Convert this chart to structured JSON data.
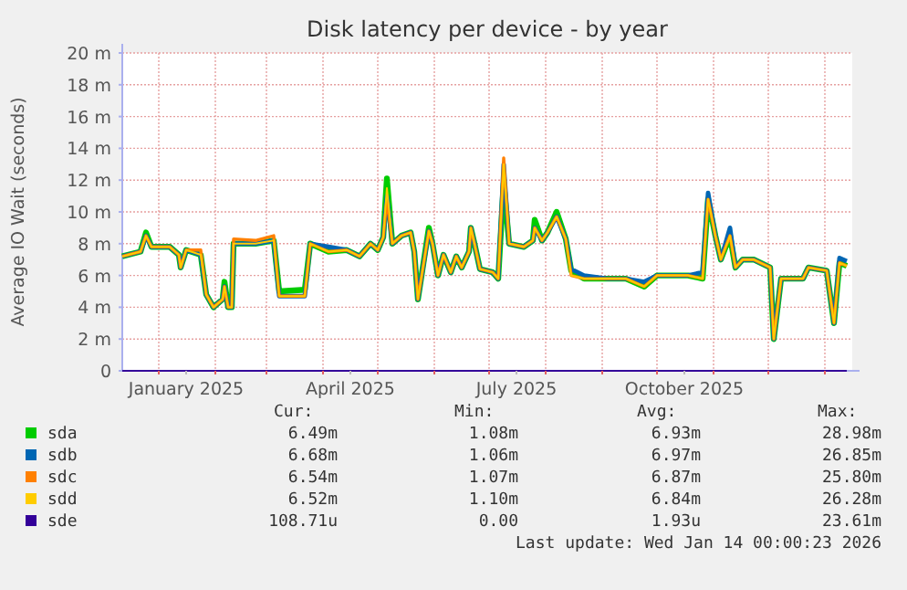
{
  "chart_data": {
    "type": "line",
    "title": "Disk latency per device - by year",
    "ylabel": "Average IO Wait (seconds)",
    "xlim": [
      "2024-12-12",
      "2026-01-16"
    ],
    "xticks": [
      {
        "value": "2025-01-01",
        "label": null
      },
      {
        "value": "2025-01-16",
        "label": "January 2025"
      },
      {
        "value": "2025-02-01",
        "label": null
      },
      {
        "value": "2025-03-01",
        "label": null
      },
      {
        "value": "2025-04-01",
        "label": null
      },
      {
        "value": "2025-04-16",
        "label": "April 2025"
      },
      {
        "value": "2025-05-01",
        "label": null
      },
      {
        "value": "2025-06-01",
        "label": null
      },
      {
        "value": "2025-07-01",
        "label": null
      },
      {
        "value": "2025-07-16",
        "label": "July 2025"
      },
      {
        "value": "2025-08-01",
        "label": null
      },
      {
        "value": "2025-09-01",
        "label": null
      },
      {
        "value": "2025-10-01",
        "label": null
      },
      {
        "value": "2025-10-16",
        "label": "October 2025"
      },
      {
        "value": "2025-11-01",
        "label": null
      },
      {
        "value": "2025-12-01",
        "label": null
      },
      {
        "value": "2026-01-01",
        "label": null
      }
    ],
    "ylim": [
      0,
      20
    ],
    "yticks": [
      {
        "value": 0,
        "label": "0"
      },
      {
        "value": 2,
        "label": "2 m"
      },
      {
        "value": 4,
        "label": "4 m"
      },
      {
        "value": 6,
        "label": "6 m"
      },
      {
        "value": 8,
        "label": "8 m"
      },
      {
        "value": 10,
        "label": "10 m"
      },
      {
        "value": 12,
        "label": "12 m"
      },
      {
        "value": 14,
        "label": "14 m"
      },
      {
        "value": 16,
        "label": "16 m"
      },
      {
        "value": 18,
        "label": "18 m"
      },
      {
        "value": 20,
        "label": "20 m"
      }
    ],
    "grid": true,
    "legend": "bottom left",
    "x": [
      "2024-12-12",
      "2024-12-22",
      "2024-12-25",
      "2024-12-28",
      "2025-01-07",
      "2025-01-12",
      "2025-01-13",
      "2025-01-16",
      "2025-01-24",
      "2025-01-27",
      "2025-01-31",
      "2025-02-05",
      "2025-02-06",
      "2025-02-08",
      "2025-02-10",
      "2025-02-11",
      "2025-02-23",
      "2025-03-05",
      "2025-03-08",
      "2025-03-22",
      "2025-03-25",
      "2025-04-04",
      "2025-04-14",
      "2025-04-21",
      "2025-04-27",
      "2025-05-01",
      "2025-05-04",
      "2025-05-06",
      "2025-05-09",
      "2025-05-14",
      "2025-05-19",
      "2025-05-21",
      "2025-05-23",
      "2025-05-29",
      "2025-05-31",
      "2025-06-03",
      "2025-06-06",
      "2025-06-10",
      "2025-06-13",
      "2025-06-16",
      "2025-06-20",
      "2025-06-21",
      "2025-06-23",
      "2025-06-26",
      "2025-07-03",
      "2025-07-06",
      "2025-07-09",
      "2025-07-12",
      "2025-07-20",
      "2025-07-25",
      "2025-07-26",
      "2025-07-30",
      "2025-08-02",
      "2025-08-07",
      "2025-08-12",
      "2025-08-15",
      "2025-08-22",
      "2025-09-04",
      "2025-09-14",
      "2025-09-24",
      "2025-10-01",
      "2025-10-08",
      "2025-10-18",
      "2025-10-26",
      "2025-10-29",
      "2025-11-02",
      "2025-11-05",
      "2025-11-10",
      "2025-11-13",
      "2025-11-17",
      "2025-11-23",
      "2025-12-02",
      "2025-12-04",
      "2025-12-08",
      "2025-12-20",
      "2025-12-23",
      "2026-01-02",
      "2026-01-06",
      "2026-01-09",
      "2026-01-13"
    ],
    "series": [
      {
        "name": "sda",
        "color": "#00cc00",
        "values": [
          7.2,
          7.5,
          8.7,
          7.8,
          7.8,
          7.3,
          6.5,
          7.6,
          7.3,
          4.8,
          4.0,
          4.5,
          5.6,
          4.0,
          4.0,
          8.0,
          8.0,
          8.2,
          5.0,
          5.1,
          8.0,
          7.5,
          7.6,
          7.2,
          8.0,
          7.6,
          8.4,
          12.1,
          8.0,
          8.5,
          8.7,
          7.5,
          4.5,
          9.0,
          8.0,
          6.0,
          7.3,
          6.2,
          7.2,
          6.5,
          7.5,
          9.0,
          8.0,
          6.4,
          6.2,
          5.8,
          11.8,
          8.0,
          7.8,
          8.2,
          9.5,
          8.2,
          8.7,
          10.0,
          8.3,
          6.3,
          5.8,
          5.8,
          5.8,
          5.3,
          6.0,
          6.0,
          6.0,
          5.8,
          10.8,
          8.5,
          7.0,
          8.5,
          6.5,
          7.0,
          7.0,
          6.5,
          2.0,
          5.8,
          5.8,
          6.5,
          6.3,
          3.0,
          6.8,
          6.6
        ]
      },
      {
        "name": "sdb",
        "color": "#0066b3",
        "values": [
          7.2,
          7.5,
          8.5,
          7.8,
          7.8,
          7.3,
          6.5,
          7.6,
          7.3,
          4.8,
          4.0,
          4.5,
          5.3,
          4.0,
          4.0,
          8.0,
          8.0,
          8.2,
          4.7,
          4.7,
          8.0,
          7.8,
          7.6,
          7.2,
          8.0,
          7.6,
          8.4,
          11.0,
          8.0,
          8.5,
          8.7,
          7.5,
          4.5,
          8.8,
          8.0,
          6.0,
          7.3,
          6.2,
          7.2,
          6.5,
          7.5,
          9.0,
          8.0,
          6.4,
          6.2,
          5.8,
          13.0,
          8.0,
          7.8,
          8.2,
          9.0,
          8.2,
          8.7,
          9.7,
          8.3,
          6.4,
          6.0,
          5.8,
          5.8,
          5.6,
          6.0,
          6.0,
          6.0,
          6.2,
          11.2,
          8.5,
          7.0,
          9.0,
          6.5,
          7.0,
          7.0,
          6.5,
          2.0,
          5.8,
          5.8,
          6.5,
          6.3,
          3.0,
          7.1,
          6.9
        ]
      },
      {
        "name": "sdc",
        "color": "#ff8000",
        "values": [
          7.2,
          7.5,
          8.5,
          7.8,
          7.8,
          7.3,
          6.5,
          7.6,
          7.6,
          4.8,
          4.0,
          4.5,
          5.3,
          4.0,
          4.0,
          8.3,
          8.2,
          8.5,
          4.7,
          4.7,
          8.0,
          7.5,
          7.6,
          7.2,
          8.0,
          7.6,
          8.4,
          10.8,
          8.0,
          8.5,
          8.7,
          7.5,
          4.5,
          8.8,
          8.0,
          6.0,
          7.3,
          6.2,
          7.2,
          6.5,
          7.5,
          9.0,
          8.0,
          6.4,
          6.2,
          5.8,
          13.4,
          8.0,
          7.8,
          8.2,
          9.0,
          8.2,
          8.7,
          9.7,
          8.3,
          6.0,
          5.8,
          5.8,
          5.8,
          5.3,
          6.0,
          6.0,
          6.0,
          5.8,
          10.8,
          8.5,
          7.0,
          8.5,
          6.5,
          7.0,
          7.0,
          6.5,
          2.0,
          5.8,
          5.8,
          6.5,
          6.3,
          3.0,
          6.8,
          6.6
        ]
      },
      {
        "name": "sdd",
        "color": "#ffcc00",
        "values": [
          7.2,
          7.5,
          8.5,
          7.8,
          7.8,
          7.3,
          6.5,
          7.6,
          7.3,
          4.8,
          4.0,
          4.5,
          5.3,
          4.0,
          4.0,
          8.0,
          8.0,
          8.2,
          4.7,
          4.7,
          8.0,
          7.5,
          7.6,
          7.2,
          8.0,
          7.6,
          8.4,
          11.5,
          8.0,
          8.5,
          8.7,
          7.5,
          4.5,
          8.8,
          8.0,
          6.0,
          7.3,
          6.2,
          7.2,
          6.5,
          7.5,
          9.0,
          8.0,
          6.4,
          6.2,
          5.8,
          13.0,
          8.0,
          7.8,
          8.2,
          9.0,
          8.2,
          8.7,
          9.7,
          8.3,
          6.0,
          5.8,
          5.8,
          5.8,
          5.3,
          6.0,
          6.0,
          6.0,
          5.8,
          10.8,
          8.5,
          7.0,
          8.5,
          6.5,
          7.0,
          7.0,
          6.5,
          2.0,
          5.8,
          5.8,
          6.5,
          6.3,
          3.0,
          6.8,
          6.6
        ]
      },
      {
        "name": "sde",
        "color": "#330099",
        "values": [
          0,
          0,
          0,
          0,
          0,
          0,
          0,
          0,
          0,
          0,
          0,
          0,
          0,
          0,
          0,
          0,
          0,
          0,
          0,
          0,
          0,
          0,
          0,
          0,
          0,
          0,
          0,
          0,
          0,
          0,
          0,
          0,
          0,
          0,
          0,
          0,
          0,
          0,
          0,
          0,
          0,
          0,
          0,
          0,
          0,
          0,
          0,
          0,
          0,
          0,
          0,
          0,
          0,
          0,
          0,
          0,
          0,
          0,
          0,
          0,
          0,
          0,
          0,
          0,
          0,
          0,
          0,
          0,
          0,
          0,
          0,
          0,
          0,
          0,
          0,
          0,
          0,
          0,
          0,
          0
        ]
      }
    ],
    "annotations": [
      "Cur:",
      "Min:",
      "Avg:",
      "Max:",
      "6.49m",
      "1.08m",
      "6.93m",
      "28.98m",
      "6.68m",
      "1.06m",
      "6.97m",
      "26.85m",
      "6.54m",
      "1.07m",
      "6.87m",
      "25.80m",
      "6.52m",
      "1.10m",
      "6.84m",
      "26.28m",
      "108.71u",
      "0.00",
      "1.93u",
      "23.61m",
      "Last update: Wed Jan 14 00:00:23 2026"
    ]
  }
}
